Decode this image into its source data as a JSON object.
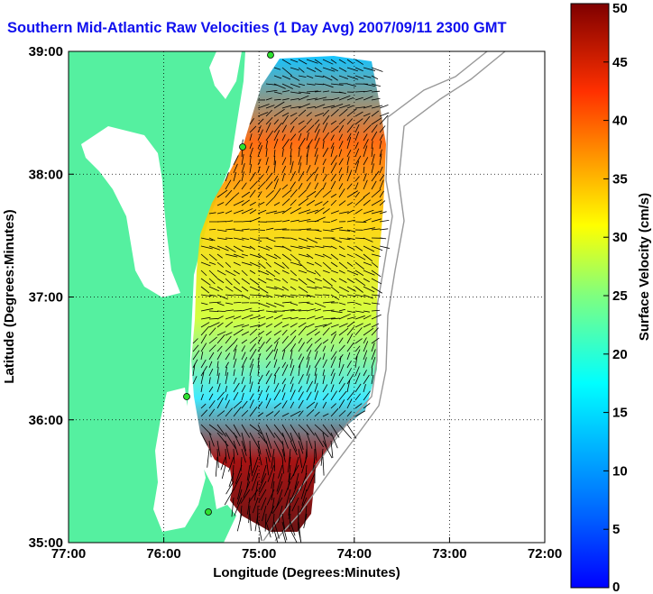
{
  "title": "Southern Mid-Atlantic Raw Velocities (1 Day Avg) 2007/09/11 2300 GMT",
  "map": {
    "x_label": "Longitude (Degrees:Minutes)",
    "y_label": "Latitude (Degrees:Minutes)",
    "x_ticks": [
      "77:00",
      "76:00",
      "75:00",
      "74:00",
      "73:00",
      "72:00"
    ],
    "y_ticks": [
      "39:00",
      "38:00",
      "37:00",
      "36:00",
      "35:00"
    ],
    "grid": "dotted"
  },
  "colorbar": {
    "label": "Surface Velocity (cm/s)",
    "ticks": [
      "50",
      "45",
      "40",
      "35",
      "30",
      "25",
      "20",
      "15",
      "10",
      "5",
      "0"
    ],
    "min": 0,
    "max": 50,
    "colormap": "jet"
  },
  "colors": {
    "land": "#55f0a0",
    "title": "#1010ee",
    "station": "#2ee02e",
    "bathymetry": "#999999",
    "vector": "#000000"
  }
}
